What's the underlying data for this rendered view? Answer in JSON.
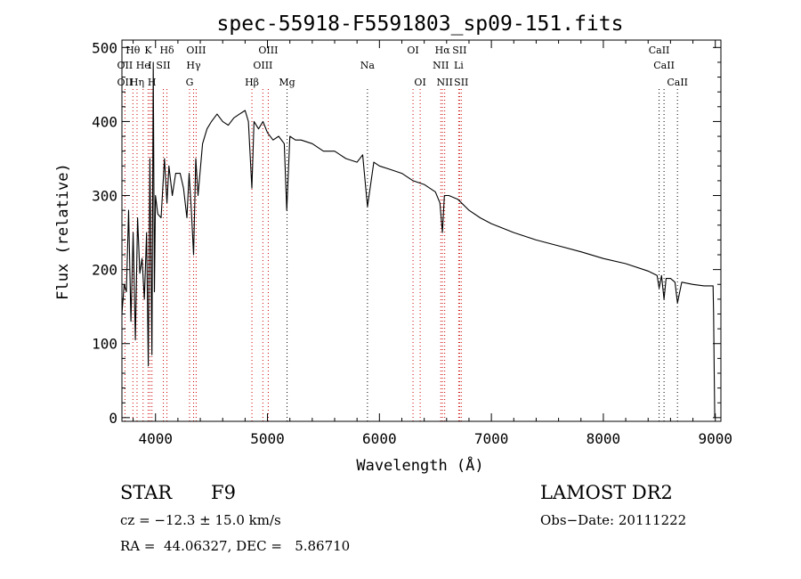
{
  "chart_data": {
    "type": "line",
    "title": "spec-55918-F5591803_sp09-151.fits",
    "xlabel": "Wavelength (Å)",
    "ylabel": "Flux (relative)",
    "xlim": [
      3700,
      9050
    ],
    "ylim": [
      -5,
      510
    ],
    "xticks": [
      4000,
      5000,
      6000,
      7000,
      8000,
      9000
    ],
    "yticks": [
      0,
      100,
      200,
      300,
      400,
      500
    ],
    "grid": false,
    "series": [
      {
        "x": [
          3700,
          3720,
          3740,
          3760,
          3780,
          3800,
          3820,
          3840,
          3860,
          3880,
          3900,
          3920,
          3935,
          3950,
          3968,
          3980,
          3990,
          4000,
          4020,
          4050,
          4080,
          4102,
          4120,
          4150,
          4180,
          4220,
          4250,
          4280,
          4300,
          4320,
          4340,
          4360,
          4380,
          4420,
          4460,
          4500,
          4550,
          4600,
          4650,
          4700,
          4750,
          4800,
          4830,
          4861,
          4880,
          4920,
          4960,
          5000,
          5050,
          5100,
          5150,
          5172,
          5183,
          5200,
          5250,
          5300,
          5400,
          5500,
          5600,
          5700,
          5800,
          5850,
          5893,
          5950,
          6000,
          6100,
          6200,
          6300,
          6400,
          6500,
          6540,
          6563,
          6580,
          6620,
          6700,
          6800,
          6900,
          7000,
          7200,
          7400,
          7600,
          7800,
          8000,
          8200,
          8400,
          8480,
          8498,
          8520,
          8542,
          8560,
          8600,
          8640,
          8662,
          8700,
          8800,
          8900,
          8980,
          8985,
          8990,
          8995
        ],
        "y": [
          140,
          180,
          170,
          280,
          130,
          250,
          105,
          270,
          195,
          215,
          160,
          250,
          70,
          350,
          85,
          480,
          170,
          300,
          275,
          270,
          350,
          290,
          340,
          300,
          330,
          330,
          310,
          270,
          330,
          280,
          220,
          350,
          300,
          370,
          390,
          400,
          410,
          400,
          395,
          405,
          410,
          415,
          400,
          310,
          400,
          390,
          400,
          385,
          375,
          380,
          370,
          280,
          320,
          380,
          375,
          375,
          370,
          360,
          360,
          350,
          345,
          355,
          285,
          345,
          340,
          335,
          330,
          320,
          315,
          305,
          290,
          250,
          300,
          300,
          295,
          280,
          270,
          262,
          250,
          240,
          232,
          224,
          215,
          208,
          198,
          192,
          175,
          192,
          160,
          188,
          188,
          183,
          155,
          183,
          180,
          178,
          178,
          140,
          60,
          0
        ]
      }
    ],
    "line_labels": [
      {
        "text": "Hθ",
        "w": 3798,
        "row": 0,
        "color": "#cc0000"
      },
      {
        "text": "K",
        "w": 3934,
        "row": 0,
        "color": "#cc0000"
      },
      {
        "text": "Hδ",
        "w": 4102,
        "row": 0,
        "color": "#cc0000"
      },
      {
        "text": "OIII",
        "w": 4363,
        "row": 0,
        "color": "#cc0000"
      },
      {
        "text": "OIII",
        "w": 5007,
        "row": 0,
        "color": "#cc0000"
      },
      {
        "text": "OI",
        "w": 6300,
        "row": 0,
        "color": "#cc0000"
      },
      {
        "text": "Hα",
        "w": 6563,
        "row": 0,
        "color": "#cc0000"
      },
      {
        "text": "SII",
        "w": 6716,
        "row": 0,
        "color": "#cc0000"
      },
      {
        "text": "CaII",
        "w": 8498,
        "row": 0,
        "color": "#000000"
      },
      {
        "text": "OII",
        "w": 3727,
        "row": 1,
        "color": "#cc0000"
      },
      {
        "text": "He",
        "w": 3889,
        "row": 1,
        "color": "#cc0000"
      },
      {
        "text": "I",
        "w": 3950,
        "row": 1,
        "color": "#cc0000"
      },
      {
        "text": "SII",
        "w": 4070,
        "row": 1,
        "color": "#cc0000"
      },
      {
        "text": "Hγ",
        "w": 4340,
        "row": 1,
        "color": "#cc0000"
      },
      {
        "text": "OIII",
        "w": 4959,
        "row": 1,
        "color": "#cc0000"
      },
      {
        "text": "Na",
        "w": 5893,
        "row": 1,
        "color": "#000000"
      },
      {
        "text": "NII",
        "w": 6548,
        "row": 1,
        "color": "#cc0000"
      },
      {
        "text": "Li",
        "w": 6708,
        "row": 1,
        "color": "#cc0000"
      },
      {
        "text": "CaII",
        "w": 8542,
        "row": 1,
        "color": "#000000"
      },
      {
        "text": "OII",
        "w": 3727,
        "row": 2,
        "color": "#cc0000"
      },
      {
        "text": "Hη",
        "w": 3835,
        "row": 2,
        "color": "#cc0000"
      },
      {
        "text": "H",
        "w": 3968,
        "row": 2,
        "color": "#cc0000"
      },
      {
        "text": "G",
        "w": 4304,
        "row": 2,
        "color": "#cc0000"
      },
      {
        "text": "Hβ",
        "w": 4861,
        "row": 2,
        "color": "#cc0000"
      },
      {
        "text": "Mg",
        "w": 5175,
        "row": 2,
        "color": "#000000"
      },
      {
        "text": "OI",
        "w": 6364,
        "row": 2,
        "color": "#cc0000"
      },
      {
        "text": "NII",
        "w": 6583,
        "row": 2,
        "color": "#cc0000"
      },
      {
        "text": "SII",
        "w": 6731,
        "row": 2,
        "color": "#cc0000"
      },
      {
        "text": "CaII",
        "w": 8662,
        "row": 2,
        "color": "#000000"
      }
    ]
  },
  "info": {
    "class_label": "STAR",
    "subclass": "F9",
    "survey": "LAMOST DR2",
    "cz": "cz = −12.3 ± 15.0 km/s",
    "obs_date": "Obs−Date: 20111222",
    "coords": "RA =  44.06327, DEC =   5.86710"
  }
}
